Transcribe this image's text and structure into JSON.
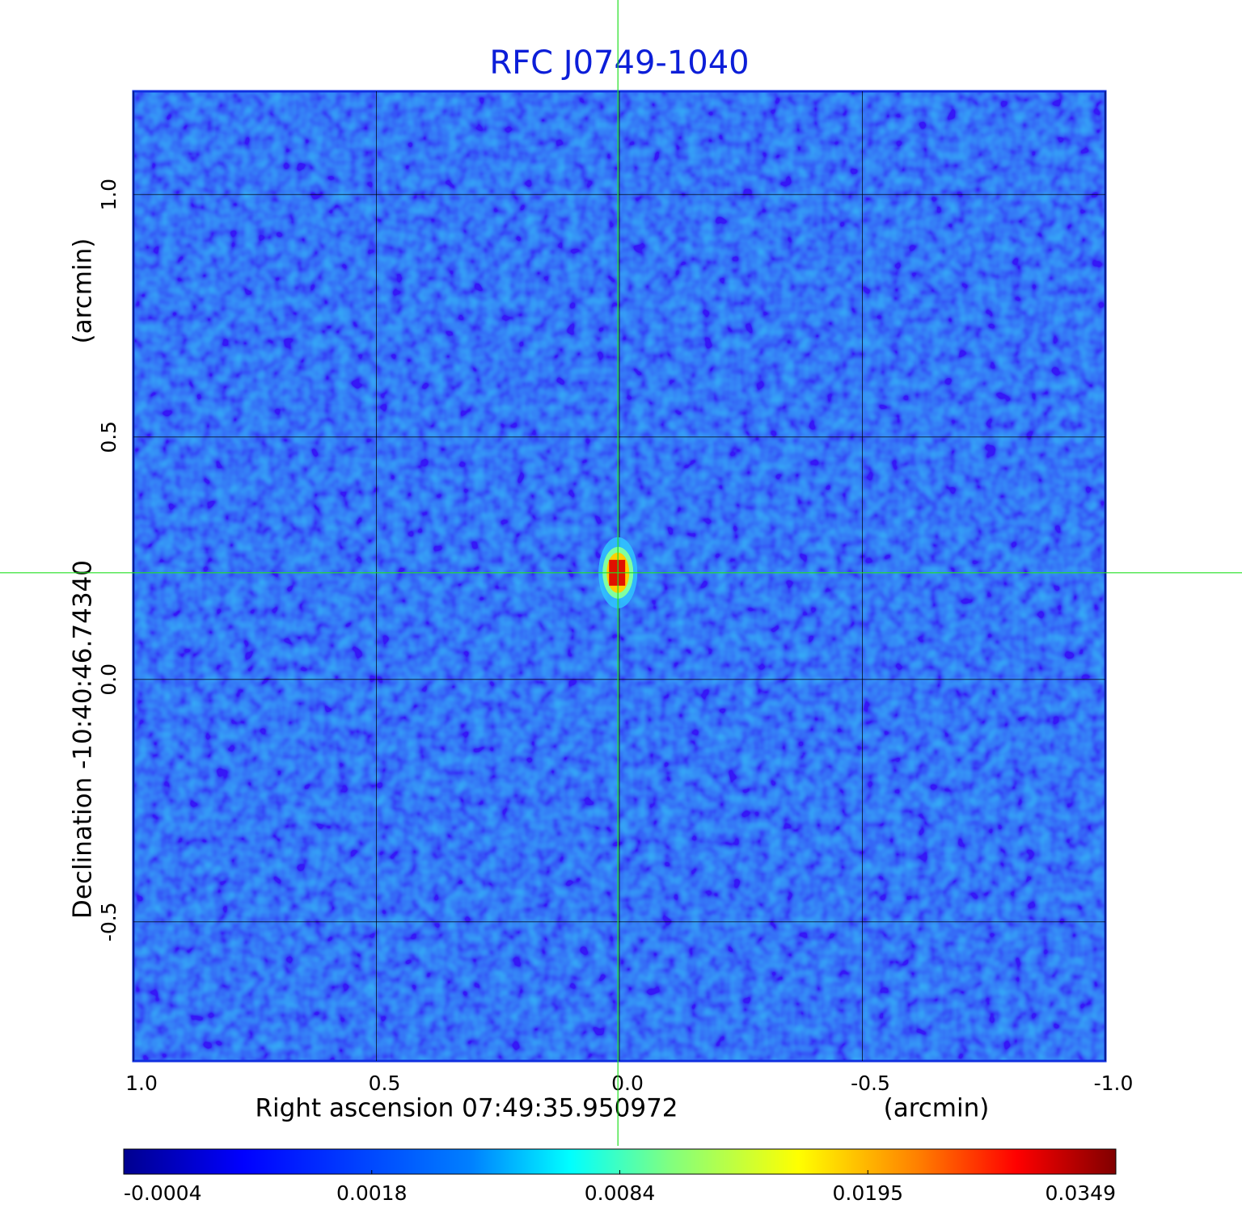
{
  "chart_data": {
    "type": "image",
    "title": "RFC J0749-1040",
    "x_label": "Right ascension  07:49:35.950972",
    "x_unit": "(arcmin)",
    "y_label": "Declination  -10:40:46.74340",
    "y_unit": "(arcmin)",
    "xlim": [
      1.0,
      -1.0
    ],
    "xticks": [
      {
        "value": 1,
        "label": "1.0"
      },
      0.5,
      {
        "value": 0,
        "label": "0.0"
      },
      -0.5,
      {
        "value": -1,
        "label": "-1.0"
      }
    ],
    "ylim": [
      -0.787,
      1.213
    ],
    "yticks": [
      {
        "value": 1,
        "label": "1.0"
      },
      0.5,
      {
        "value": 0,
        "label": "0.0"
      },
      -0.5
    ],
    "grid": true,
    "source": {
      "x": 0.003,
      "y": 0.22,
      "peak": 0.0349
    },
    "colorbar": {
      "colormap": "jet",
      "lim": [
        -0.0004,
        0.0349
      ],
      "ticks": [
        -0.0004,
        0.0018,
        0.0084,
        0.0195,
        0.0349
      ]
    }
  }
}
